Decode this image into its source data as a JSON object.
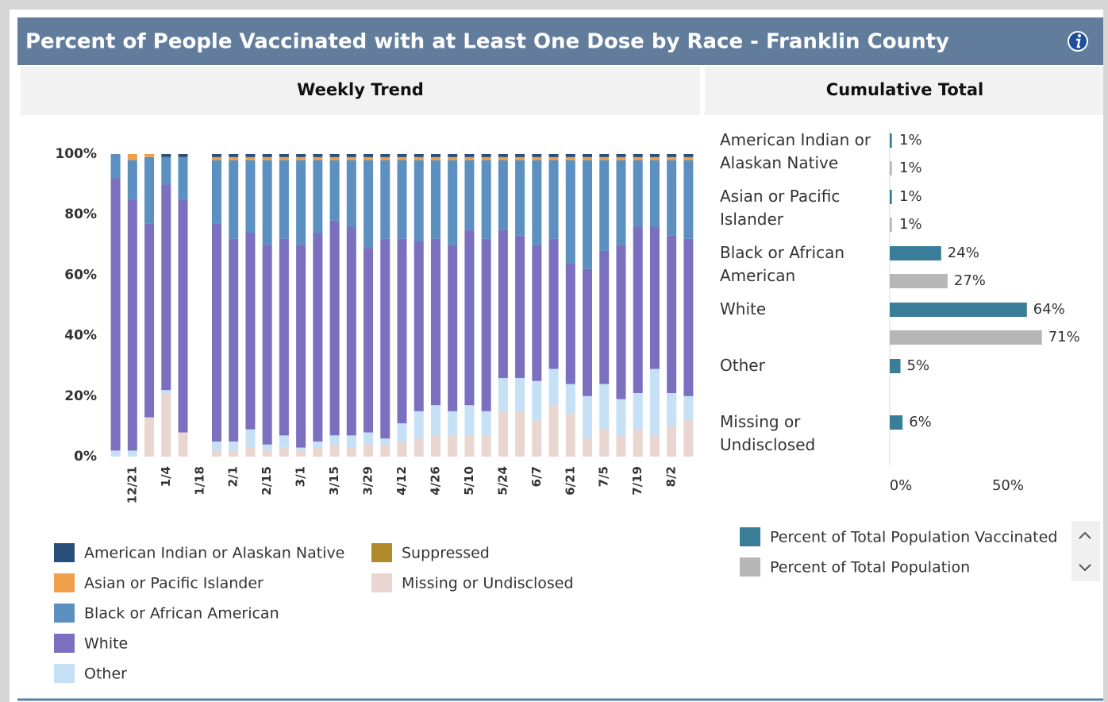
{
  "title": "Percent of People Vaccinated with at Least One Dose by Race - Franklin County",
  "chart_data": [
    {
      "type": "stacked_bar",
      "title": "Weekly Trend",
      "categories": [
        null,
        "12/21",
        null,
        "1/4",
        null,
        "1/18",
        null,
        "2/1",
        null,
        "2/15",
        null,
        "3/1",
        null,
        "3/15",
        null,
        "3/29",
        null,
        "4/12",
        null,
        "4/26",
        null,
        "5/10",
        null,
        "5/24",
        null,
        "6/7",
        null,
        "6/21",
        null,
        "7/5",
        null,
        "7/19",
        null,
        "8/2",
        null
      ],
      "series": [
        {
          "name": "American Indian or Alaskan Native",
          "color": "#2a4e7a",
          "values": [
            0,
            0,
            0,
            1,
            1,
            null,
            1,
            1,
            1,
            1,
            1,
            1,
            1,
            1,
            1,
            1,
            1,
            1,
            1,
            1,
            1,
            1,
            1,
            1,
            1,
            1,
            1,
            1,
            1,
            1,
            1,
            1,
            1,
            1,
            1
          ]
        },
        {
          "name": "Asian or Pacific Islander",
          "color": "#f0a04b",
          "values": [
            0,
            2,
            1,
            0,
            0,
            null,
            1,
            1,
            1,
            1,
            1,
            1,
            1,
            1,
            1,
            1,
            1,
            1,
            1,
            1,
            1,
            1,
            1,
            1,
            1,
            1,
            1,
            1,
            1,
            1,
            1,
            1,
            1,
            1,
            1
          ]
        },
        {
          "name": "Black or African American",
          "color": "#5b90c0",
          "values": [
            8,
            13,
            22,
            9,
            14,
            null,
            21,
            26,
            24,
            28,
            26,
            28,
            24,
            20,
            22,
            29,
            26,
            26,
            27,
            26,
            28,
            23,
            26,
            23,
            25,
            28,
            26,
            34,
            36,
            30,
            28,
            22,
            22,
            25,
            26
          ]
        },
        {
          "name": "White",
          "color": "#7b6fc0",
          "values": [
            90,
            83,
            64,
            68,
            77,
            null,
            72,
            67,
            65,
            66,
            65,
            67,
            69,
            71,
            69,
            61,
            66,
            61,
            56,
            55,
            55,
            58,
            57,
            49,
            47,
            45,
            43,
            40,
            42,
            44,
            51,
            55,
            47,
            52,
            52
          ]
        },
        {
          "name": "Other",
          "color": "#c6e0f5",
          "values": [
            2,
            2,
            0,
            1,
            0,
            null,
            3,
            3,
            6,
            2,
            4,
            1,
            2,
            3,
            4,
            4,
            2,
            6,
            9,
            10,
            8,
            10,
            8,
            11,
            11,
            13,
            12,
            10,
            14,
            15,
            12,
            12,
            22,
            11,
            8
          ]
        },
        {
          "name": "Suppressed",
          "color": "#b08a2a",
          "values": [
            0,
            0,
            0,
            0,
            0,
            null,
            0,
            0,
            0,
            0,
            0,
            0,
            0,
            0,
            0,
            0,
            0,
            0,
            0,
            0,
            0,
            0,
            0,
            0,
            0,
            0,
            0,
            0,
            0,
            0,
            0,
            0,
            0,
            0,
            0
          ]
        },
        {
          "name": "Missing or Undisclosed",
          "color": "#ead6d0",
          "values": [
            0,
            0,
            13,
            21,
            8,
            null,
            2,
            2,
            3,
            2,
            3,
            2,
            3,
            4,
            3,
            4,
            4,
            5,
            6,
            7,
            7,
            7,
            7,
            15,
            15,
            12,
            17,
            14,
            6,
            9,
            7,
            9,
            7,
            10,
            12
          ]
        }
      ],
      "ylim": [
        0,
        100
      ],
      "yticks": [
        {
          "value": 0,
          "label": "0%"
        },
        {
          "value": 20,
          "label": "20%"
        },
        {
          "value": 40,
          "label": "40%"
        },
        {
          "value": 60,
          "label": "60%"
        },
        {
          "value": 80,
          "label": "80%"
        },
        {
          "value": 100,
          "label": "100%"
        }
      ],
      "grid": false
    },
    {
      "type": "hbar",
      "title": "Cumulative Total",
      "categories": [
        "American Indian or Alaskan Native",
        "Asian or Pacific Islander",
        "Black or African American",
        "White",
        "Other",
        "Missing or Undisclosed"
      ],
      "series": [
        {
          "name": "Percent of Total Population Vaccinated",
          "color": "#3a7d98",
          "values": [
            1,
            1,
            24,
            64,
            5,
            6
          ],
          "value_labels": [
            "1%",
            "1%",
            "24%",
            "64%",
            "5%",
            "6%"
          ]
        },
        {
          "name": "Percent of Total Population",
          "color": "#b7b7b7",
          "values": [
            1,
            1,
            27,
            71,
            null,
            null
          ],
          "value_labels": [
            "1%",
            "1%",
            "27%",
            "71%",
            null,
            null
          ]
        }
      ],
      "xlim": [
        0,
        90
      ],
      "xticks": [
        {
          "value": 0,
          "label": "0%"
        },
        {
          "value": 50,
          "label": "50%"
        }
      ]
    }
  ]
}
